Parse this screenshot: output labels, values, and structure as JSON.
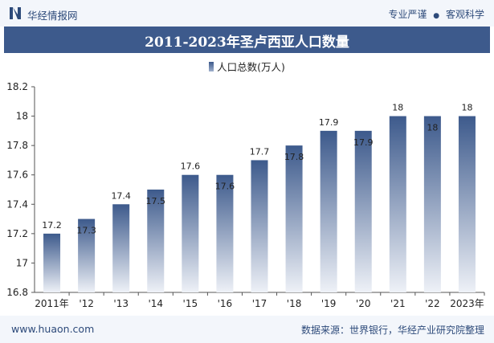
{
  "header": {
    "brand": "华经情报网",
    "right_text_1": "专业严谨",
    "dot": "●",
    "right_text_2": "客观科学"
  },
  "title": "2011-2023年圣卢西亚人口数量",
  "legend_label": "人口总数(万人)",
  "footer": {
    "website": "www.huaon.com",
    "source": "数据来源：世界银行，华经产业研究院整理"
  },
  "colors": {
    "bar_top": "#3d5a8c",
    "bar_bottom": "#eef1f7",
    "title_bg": "#3d5a8c"
  },
  "chart_data": {
    "type": "bar",
    "categories": [
      "2011年",
      "'12",
      "'13",
      "'14",
      "'15",
      "'16",
      "'17",
      "'18",
      "'19",
      "'20",
      "'21",
      "'22",
      "2023年"
    ],
    "series": [
      {
        "name": "人口总数(万人)",
        "values": [
          17.2,
          17.3,
          17.4,
          17.5,
          17.6,
          17.6,
          17.7,
          17.8,
          17.9,
          17.9,
          18,
          18,
          18
        ]
      }
    ],
    "ylim": [
      16.8,
      18.2
    ],
    "yticks": [
      16.8,
      17,
      17.2,
      17.4,
      17.6,
      17.8,
      18,
      18.2
    ],
    "ytick_labels": [
      "16.8",
      "17",
      "17.2",
      "17.4",
      "17.6",
      "17.8",
      "18",
      "18.2"
    ],
    "data_labels": [
      "17.2",
      "17.3",
      "17.4",
      "17.5",
      "17.6",
      "17.6",
      "17.7",
      "17.8",
      "17.9",
      "17.9",
      "18",
      "18",
      "18"
    ],
    "label_inside": [
      false,
      true,
      false,
      true,
      false,
      true,
      false,
      true,
      false,
      true,
      false,
      true,
      false
    ],
    "grid": false,
    "legend": "top-center"
  }
}
